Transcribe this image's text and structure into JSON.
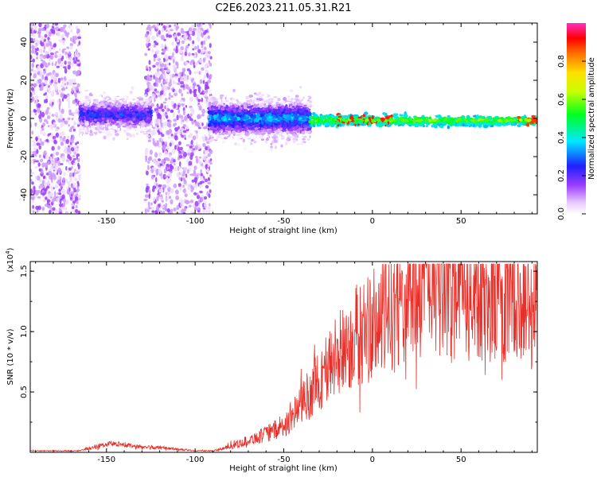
{
  "title": "C2E6.2023.211.05.31.R21",
  "colors": {
    "spectrogram_low": "#a24cf5",
    "snr_line": "#e8302a",
    "axis": "#000000"
  },
  "chart_data": [
    {
      "type": "heatmap",
      "name": "spectrogram",
      "xlabel": "Height of straight line (km)",
      "ylabel": "Frequency (Hz)",
      "xlim": [
        -193,
        93
      ],
      "ylim": [
        -50,
        50
      ],
      "xticks": [
        -150,
        -100,
        -50,
        0,
        50
      ],
      "xtick_labels": [
        "-150",
        "-100",
        "-50",
        "0",
        "50"
      ],
      "yticks": [
        -40,
        -20,
        0,
        20,
        40
      ],
      "ytick_labels": [
        "-40",
        "-20",
        "0",
        "20",
        "40"
      ],
      "colorbar": {
        "label": "Normalized spectral amplitude",
        "range": [
          0,
          1
        ],
        "ticks": [
          0.0,
          0.2,
          0.4,
          0.6,
          0.8
        ],
        "tick_labels": [
          "0.0",
          "0.2",
          "0.4",
          "0.6",
          "0.8"
        ],
        "colormap": "rainbow (purple → blue → cyan → green → yellow → orange → red → magenta)"
      },
      "features": [
        {
          "region": "noise",
          "x_range": [
            -193,
            -165
          ],
          "freq_spread": 50,
          "amplitude": 0.1
        },
        {
          "region": "noise",
          "x_range": [
            -128,
            -91
          ],
          "freq_spread": 50,
          "amplitude": 0.1
        },
        {
          "region": "signal",
          "x_range": [
            -165,
            -125
          ],
          "freq_center": 2,
          "freq_width": 10,
          "amplitude": 0.25
        },
        {
          "region": "signal",
          "x_range": [
            -92,
            -35
          ],
          "freq_center": 0,
          "freq_width": 12,
          "amplitude": 0.35
        },
        {
          "region": "signal",
          "x_range": [
            -35,
            93
          ],
          "freq_center": -1,
          "freq_width": 3,
          "amplitude": 0.6
        }
      ]
    },
    {
      "type": "line",
      "name": "snr",
      "xlabel": "Height of straight line (km)",
      "ylabel": "SNR (10 * v/v)",
      "y_multiplier_label": "(x10",
      "y_multiplier_exp": "4",
      "xlim": [
        -193,
        93
      ],
      "ylim": [
        0,
        1.58
      ],
      "xticks": [
        -150,
        -100,
        -50,
        0,
        50
      ],
      "xtick_labels": [
        "-150",
        "-100",
        "-50",
        "0",
        "50"
      ],
      "yticks": [
        0.5,
        1.0,
        1.5
      ],
      "ytick_labels": [
        "0.5",
        "1.0",
        "1.5"
      ],
      "envelope": {
        "x": [
          -193,
          -165,
          -155,
          -145,
          -135,
          -120,
          -100,
          -90,
          -80,
          -70,
          -60,
          -50,
          -40,
          -30,
          -20,
          -10,
          0,
          10,
          20,
          30,
          40,
          50,
          60,
          70,
          80,
          93
        ],
        "y": [
          0.01,
          0.01,
          0.04,
          0.06,
          0.04,
          0.03,
          0.01,
          0.01,
          0.05,
          0.1,
          0.15,
          0.22,
          0.4,
          0.6,
          0.8,
          0.95,
          1.05,
          1.15,
          1.3,
          1.4,
          1.45,
          1.4,
          1.35,
          1.3,
          1.25,
          1.2
        ]
      }
    }
  ]
}
